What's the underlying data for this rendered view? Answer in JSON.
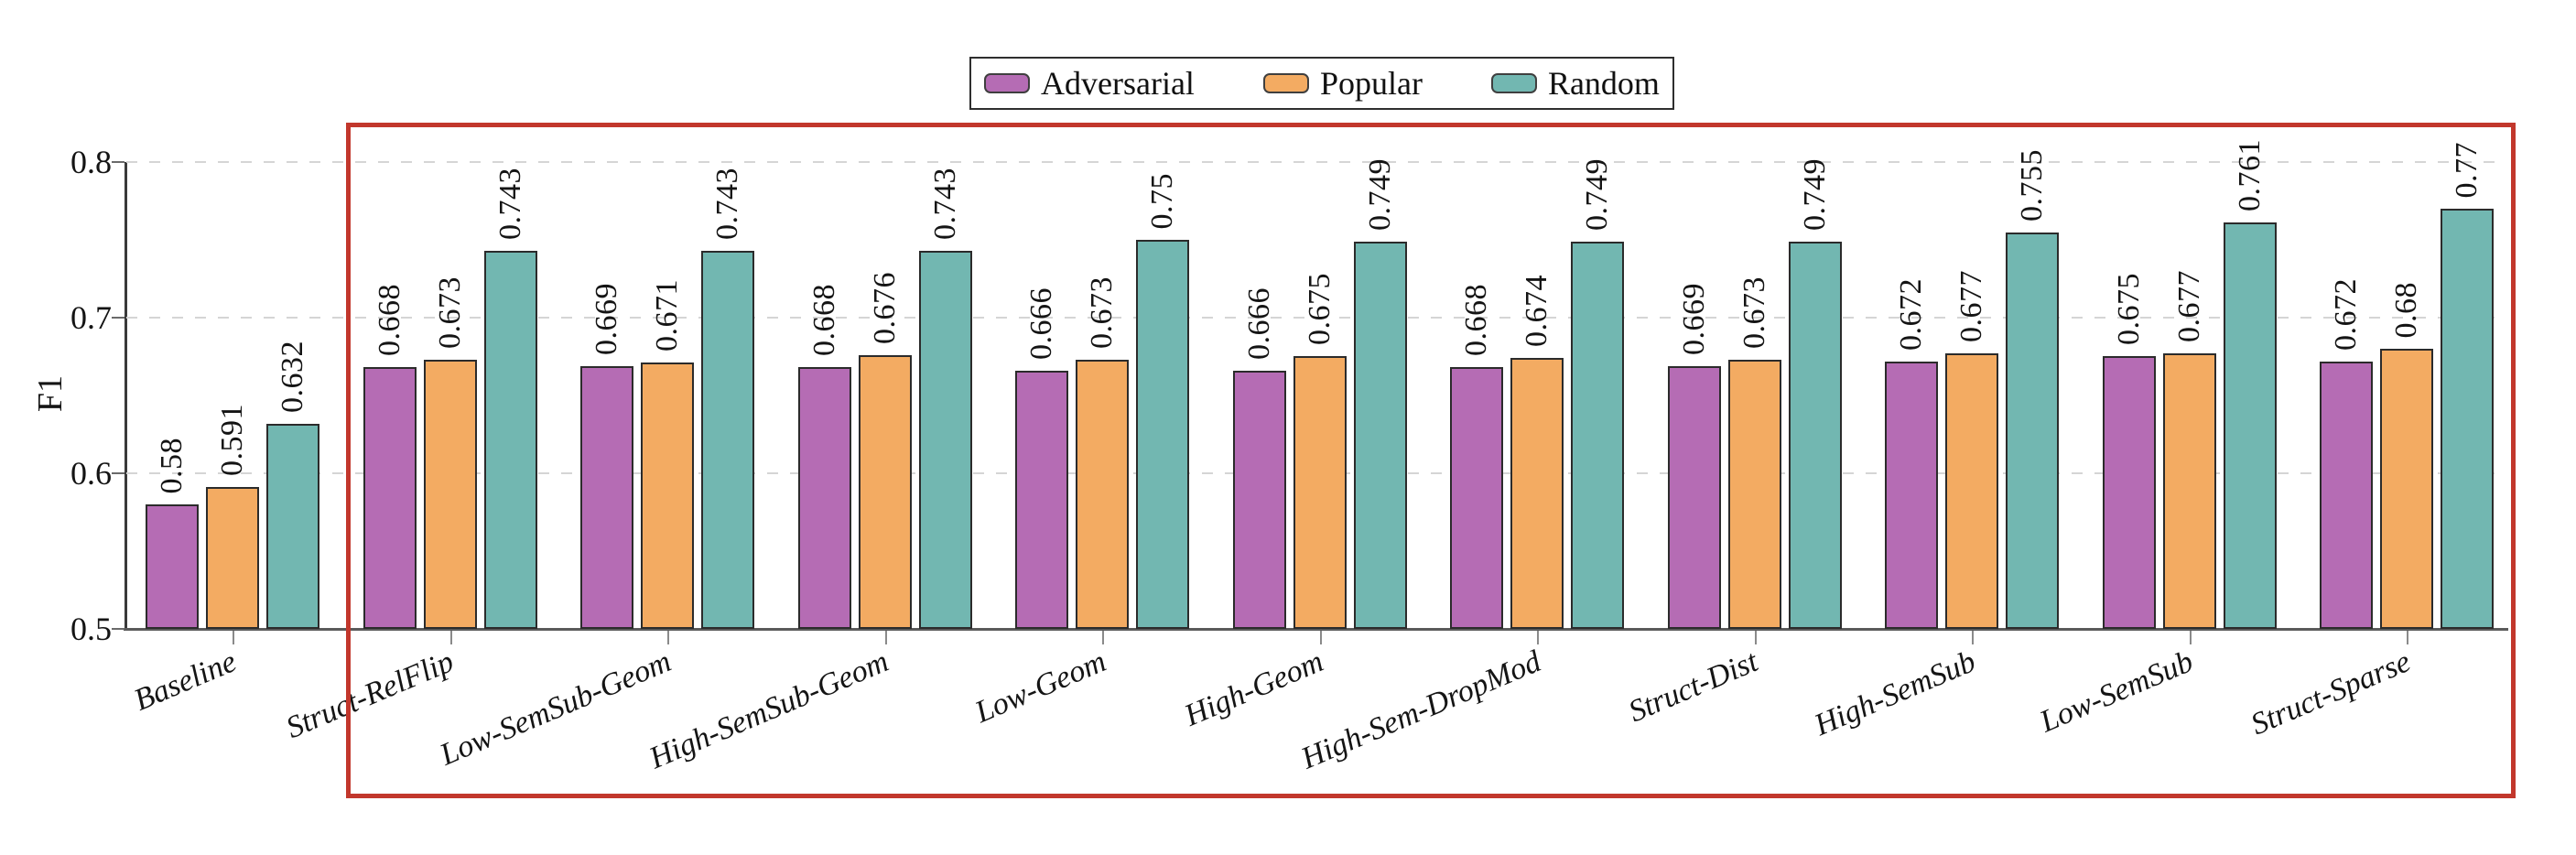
{
  "chart_data": {
    "type": "bar",
    "title": "",
    "xlabel": "",
    "ylabel": "F1",
    "ylim": [
      0.5,
      0.8
    ],
    "yticks": [
      "0.5",
      "0.6",
      "0.7",
      "0.8"
    ],
    "grid": "horizontal dashed",
    "legend_position": "top center",
    "value_labels": "shown above bars, rotated vertical",
    "categories": [
      "Baseline",
      "Struct-RelFlip",
      "Low-SemSub-Geom",
      "High-SemSub-Geom",
      "Low-Geom",
      "High-Geom",
      "High-Sem-DropMod",
      "Struct-Dist",
      "High-SemSub",
      "Low-SemSub",
      "Struct-Sparse"
    ],
    "series": [
      {
        "name": "Adversarial",
        "color": "#b56cb4",
        "values": [
          0.58,
          0.668,
          0.669,
          0.668,
          0.666,
          0.666,
          0.668,
          0.669,
          0.672,
          0.675,
          0.672
        ]
      },
      {
        "name": "Popular",
        "color": "#f3ab62",
        "values": [
          0.591,
          0.673,
          0.671,
          0.676,
          0.673,
          0.675,
          0.674,
          0.673,
          0.677,
          0.677,
          0.68
        ]
      },
      {
        "name": "Random",
        "color": "#72b7b1",
        "values": [
          0.632,
          0.743,
          0.743,
          0.743,
          0.75,
          0.749,
          0.749,
          0.749,
          0.755,
          0.761,
          0.77
        ]
      }
    ]
  },
  "annotations": {
    "highlight_box": {
      "color": "#c2372c",
      "covers_categories": [
        "Struct-RelFlip",
        "Low-SemSub-Geom",
        "High-SemSub-Geom",
        "Low-Geom",
        "High-Geom",
        "High-Sem-DropMod",
        "Struct-Dist",
        "High-SemSub",
        "Low-SemSub",
        "Struct-Sparse"
      ]
    }
  }
}
